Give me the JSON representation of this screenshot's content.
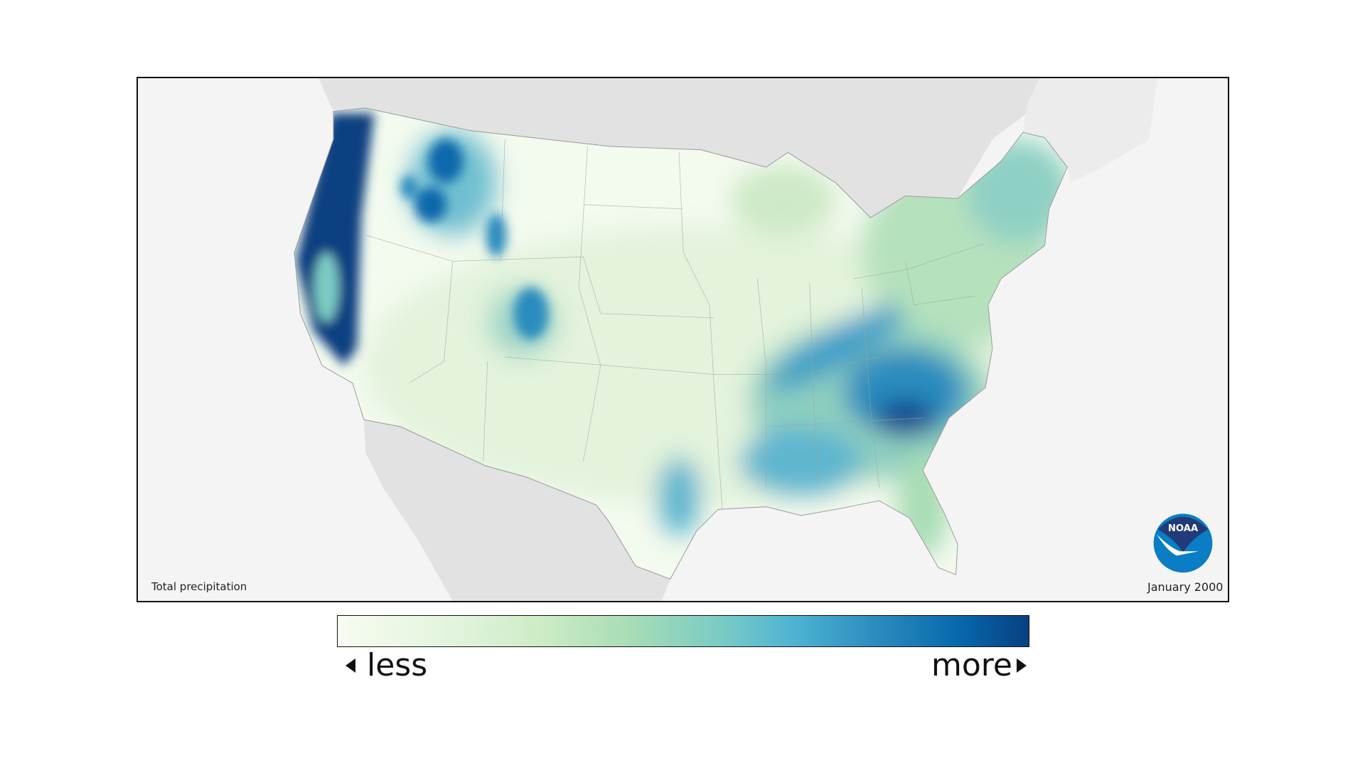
{
  "map": {
    "subject": "Total precipitation",
    "period": "January 2000",
    "logo_text": "NOAA",
    "colors": {
      "background": "#f4f4f4",
      "neighbors": "#e2e2e2",
      "less": "#f7fcf0",
      "mid": "#7bccc4",
      "more": "#084081",
      "noaa_dark": "#213a78",
      "noaa_light": "#0a7dc4"
    }
  },
  "legend": {
    "less_label": "less",
    "more_label": "more",
    "less_icon": "triangle-left-icon",
    "more_icon": "triangle-right-icon"
  }
}
